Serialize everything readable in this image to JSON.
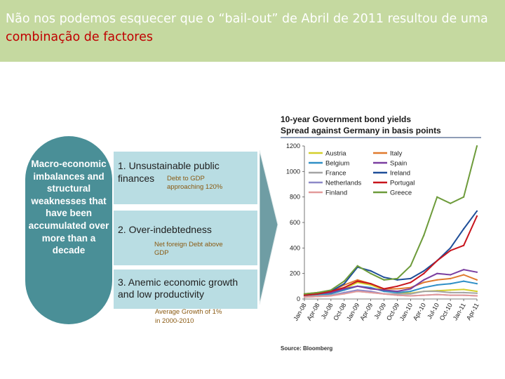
{
  "slide": {
    "title_part1": "Não nos podemos esquecer que o “bail-out” de Abril de 2011 resultou de uma ",
    "title_highlight": "combinação de factores"
  },
  "diagram": {
    "oval_text": "Macro-economic imbalances and structural weaknesses that have been accumulated over more than a decade",
    "box1_title_line1": "1. Unsustainable public",
    "box1_title_line2": "finances",
    "box1_note_line1": "Debt to GDP",
    "box1_note_line2": "approaching 120%",
    "box2_title": "2. Over-indebtedness",
    "box2_note_line1": "Net foreign Debt above",
    "box2_note_line2": "GDP",
    "box3_title_line1": "3. Anemic economic growth",
    "box3_title_line2": "and low productivity",
    "box3_note_line1": "Average Growth of 1%",
    "box3_note_line2": "in 2000-2010"
  },
  "chart_data": {
    "type": "line",
    "title": "10-year Government bond yields",
    "subtitle": "Spread against Germany in basis points",
    "source": "Source: Bloomberg",
    "ylim": [
      0,
      1200
    ],
    "yticks": [
      0,
      200,
      400,
      600,
      800,
      1000,
      1200
    ],
    "x": [
      "Jan-08",
      "Apr-08",
      "Jul-08",
      "Oct-08",
      "Jan-09",
      "Apr-09",
      "Jul-09",
      "Oct-09",
      "Jan-10",
      "Apr-10",
      "Jul-10",
      "Oct-10",
      "Jan-11",
      "Apr-11"
    ],
    "legend_position": "top-left",
    "series": [
      {
        "name": "Austria",
        "color": "#d4cf2a",
        "values": [
          25,
          30,
          45,
          80,
          130,
          110,
          70,
          50,
          45,
          60,
          65,
          70,
          75,
          60
        ]
      },
      {
        "name": "Belgium",
        "color": "#2f8fc6",
        "values": [
          20,
          30,
          40,
          70,
          100,
          90,
          60,
          50,
          60,
          90,
          110,
          120,
          140,
          120
        ]
      },
      {
        "name": "France",
        "color": "#a4a4a4",
        "values": [
          20,
          25,
          30,
          50,
          60,
          50,
          40,
          40,
          40,
          60,
          60,
          50,
          50,
          45
        ]
      },
      {
        "name": "Netherlands",
        "color": "#8d89c8",
        "values": [
          15,
          20,
          25,
          50,
          70,
          60,
          40,
          30,
          25,
          30,
          35,
          30,
          30,
          25
        ]
      },
      {
        "name": "Finland",
        "color": "#e39a9a",
        "values": [
          15,
          20,
          25,
          40,
          60,
          50,
          40,
          30,
          25,
          30,
          35,
          30,
          30,
          25
        ]
      },
      {
        "name": "Italy",
        "color": "#e07a2e",
        "values": [
          40,
          50,
          60,
          110,
          150,
          120,
          80,
          80,
          90,
          130,
          150,
          160,
          190,
          150
        ]
      },
      {
        "name": "Spain",
        "color": "#7b3fa0",
        "values": [
          30,
          40,
          50,
          80,
          100,
          80,
          70,
          60,
          80,
          150,
          200,
          190,
          230,
          210
        ]
      },
      {
        "name": "Ireland",
        "color": "#1f4e98",
        "values": [
          30,
          40,
          60,
          120,
          250,
          220,
          170,
          150,
          160,
          220,
          300,
          400,
          550,
          690
        ]
      },
      {
        "name": "Portugal",
        "color": "#c8141c",
        "values": [
          30,
          40,
          60,
          90,
          140,
          120,
          80,
          100,
          130,
          200,
          300,
          380,
          420,
          650
        ]
      },
      {
        "name": "Greece",
        "color": "#6d9b3a",
        "values": [
          40,
          50,
          70,
          140,
          260,
          200,
          150,
          160,
          260,
          500,
          800,
          750,
          800,
          1200
        ]
      }
    ]
  }
}
